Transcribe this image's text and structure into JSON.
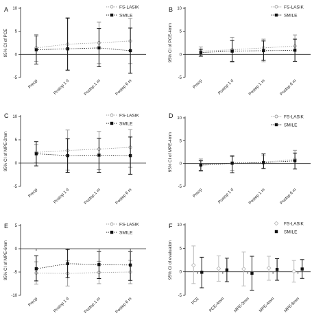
{
  "chart_data": [
    {
      "type": "line",
      "panel": "A",
      "ylabel": "95% CI of PCE",
      "ylim": [
        -5,
        10
      ],
      "yticks": [
        -5,
        0,
        5,
        10
      ],
      "categories": [
        "Preop",
        "Postop 1 d",
        "Postop 1 m",
        "Postop 6 m"
      ],
      "legend_position": "top-right",
      "series": [
        {
          "name": "FS-LASIK",
          "color": "#999999",
          "marker": "open-circle",
          "line": "dotted",
          "values": [
            1.4,
            2.2,
            2.5,
            2.9
          ],
          "lower": [
            -1.5,
            -3.5,
            -2.0,
            -2.0
          ],
          "upper": [
            4.3,
            7.7,
            7.0,
            7.8
          ]
        },
        {
          "name": "SMILE",
          "color": "#111111",
          "marker": "filled-square",
          "line": "dotted",
          "values": [
            1.0,
            1.2,
            1.4,
            0.8
          ],
          "lower": [
            -2.1,
            -3.4,
            -2.7,
            -4.1
          ],
          "upper": [
            4.0,
            7.9,
            5.6,
            5.7
          ]
        }
      ]
    },
    {
      "type": "line",
      "panel": "B",
      "ylabel": "95% CI of PCE-4mm",
      "ylim": [
        -5,
        10
      ],
      "yticks": [
        -5,
        0,
        5,
        10
      ],
      "categories": [
        "Preop",
        "Postop 1 d",
        "Postop 1 m",
        "Postop 6 m"
      ],
      "legend_position": "top-right",
      "series": [
        {
          "name": "FS-LASIK",
          "color": "#999999",
          "marker": "open-circle",
          "line": "dotted",
          "values": [
            0.7,
            1.0,
            1.4,
            1.8
          ],
          "lower": [
            -0.3,
            -1.7,
            -1.6,
            -1.5
          ],
          "upper": [
            1.6,
            3.7,
            3.3,
            4.2
          ]
        },
        {
          "name": "SMILE",
          "color": "#111111",
          "marker": "filled-square",
          "line": "dotted",
          "values": [
            0.4,
            0.7,
            0.8,
            0.9
          ],
          "lower": [
            -0.4,
            -1.5,
            -1.3,
            -1.5
          ],
          "upper": [
            1.1,
            3.0,
            2.9,
            3.3
          ]
        }
      ]
    },
    {
      "type": "line",
      "panel": "C",
      "ylabel": "95% CI of MPE-2mm",
      "ylim": [
        -5,
        10
      ],
      "yticks": [
        -5,
        0,
        5,
        10
      ],
      "categories": [
        "Preop",
        "Postop 1 d",
        "Postop 1 m",
        "Postop 6 m"
      ],
      "legend_position": "top-right",
      "series": [
        {
          "name": "FS-LASIK",
          "color": "#999999",
          "marker": "open-circle",
          "line": "dotted",
          "values": [
            2.3,
            2.7,
            3.0,
            3.4
          ],
          "lower": [
            0.1,
            -1.5,
            -1.4,
            -0.9
          ],
          "upper": [
            4.0,
            7.1,
            6.8,
            7.2
          ]
        },
        {
          "name": "SMILE",
          "color": "#111111",
          "marker": "filled-square",
          "line": "dotted",
          "values": [
            2.0,
            1.6,
            1.7,
            1.6
          ],
          "lower": [
            -0.6,
            -2.0,
            -2.0,
            -2.4
          ],
          "upper": [
            4.6,
            5.2,
            5.3,
            5.6
          ]
        }
      ]
    },
    {
      "type": "line",
      "panel": "D",
      "ylabel": "95% CI of MPE-4mm",
      "ylim": [
        -5,
        10
      ],
      "yticks": [
        -5,
        0,
        5,
        10
      ],
      "categories": [
        "Preop",
        "Postop 1 d",
        "Postop 1 m",
        "Postop 6 m"
      ],
      "legend_position": "top-right",
      "series": [
        {
          "name": "FS-LASIK",
          "color": "#999999",
          "marker": "open-circle",
          "line": "dotted",
          "values": [
            -0.4,
            0.0,
            0.3,
            0.9
          ],
          "lower": [
            -1.7,
            -1.5,
            -1.0,
            -1.2
          ],
          "upper": [
            1.0,
            1.8,
            1.7,
            2.9
          ]
        },
        {
          "name": "SMILE",
          "color": "#111111",
          "marker": "filled-square",
          "line": "dotted",
          "values": [
            -0.3,
            0.1,
            0.2,
            0.6
          ],
          "lower": [
            -1.5,
            -2.0,
            -1.1,
            -1.2
          ],
          "upper": [
            0.6,
            1.6,
            2.1,
            2.3
          ]
        }
      ]
    },
    {
      "type": "line",
      "panel": "E",
      "ylabel": "95% CI of MPE-6mm",
      "ylim": [
        -10,
        5
      ],
      "yticks": [
        -10,
        -5,
        0,
        5
      ],
      "categories": [
        "Preop",
        "Postop 1 d",
        "Postop 1 m",
        "Postop 6 m"
      ],
      "legend_position": "top-right",
      "series": [
        {
          "name": "FS-LASIK",
          "color": "#999999",
          "marker": "open-circle",
          "line": "dotted",
          "values": [
            -5.2,
            -5.3,
            -5.1,
            -5.0
          ],
          "lower": [
            -7.6,
            -8.0,
            -7.5,
            -7.5
          ],
          "upper": [
            -2.8,
            -2.6,
            -2.7,
            -2.5
          ]
        },
        {
          "name": "SMILE",
          "color": "#111111",
          "marker": "filled-square",
          "line": "dotted",
          "values": [
            -4.3,
            -3.2,
            -3.4,
            -3.5
          ],
          "lower": [
            -6.9,
            -6.2,
            -6.4,
            -6.8
          ],
          "upper": [
            -1.5,
            -0.2,
            -0.6,
            -0.6
          ]
        }
      ]
    },
    {
      "type": "scatter",
      "panel": "F",
      "ylabel": "95% CI of evaluation",
      "ylim": [
        -5,
        10
      ],
      "yticks": [
        -5,
        0,
        5,
        10
      ],
      "categories": [
        "PCE",
        "PCE-4mm",
        "MPE-2mm",
        "MPE-4mm",
        "MPE-6mm"
      ],
      "legend_position": "top-right",
      "series": [
        {
          "name": "FS-LASIK",
          "color": "#bbbbbb",
          "marker": "open-diamond",
          "line": "none",
          "values": [
            1.4,
            0.7,
            0.6,
            0.8,
            0.1
          ],
          "lower": [
            -2.5,
            -2.0,
            -3.0,
            -1.8,
            -2.2
          ],
          "upper": [
            5.5,
            3.4,
            4.2,
            3.3,
            2.4
          ]
        },
        {
          "name": "SMILE",
          "color": "#111111",
          "marker": "filled-square",
          "line": "none",
          "values": [
            -0.1,
            0.4,
            -0.3,
            0.5,
            0.6
          ],
          "lower": [
            -3.4,
            -2.1,
            -3.9,
            -1.8,
            -1.4
          ],
          "upper": [
            3.1,
            2.9,
            3.3,
            2.8,
            2.6
          ]
        }
      ]
    }
  ]
}
